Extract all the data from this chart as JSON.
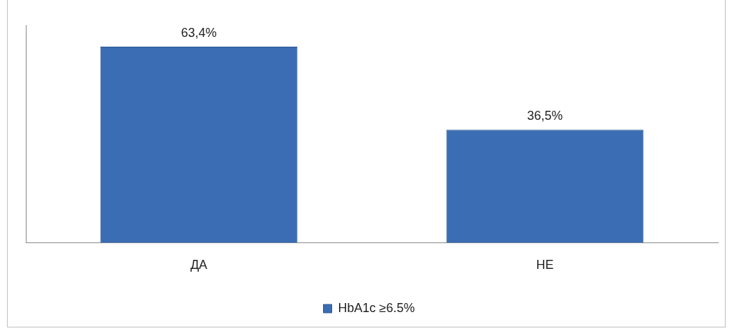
{
  "chart_data": {
    "type": "bar",
    "categories": [
      "ДА",
      "НЕ"
    ],
    "series": [
      {
        "name": "HbA1c ≥6.5%",
        "color": "#3a6db3",
        "values": [
          63.4,
          36.5
        ],
        "value_labels": [
          "63,4%",
          "36,5%"
        ]
      }
    ],
    "legend": "bottom",
    "grid": false,
    "tick_labels": "x"
  }
}
